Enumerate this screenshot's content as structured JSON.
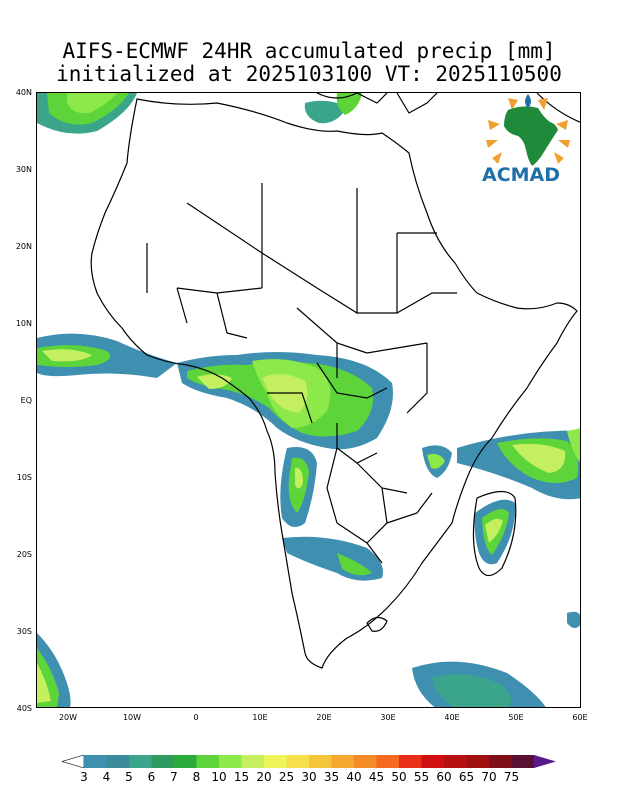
{
  "title": {
    "line1": "AIFS-ECMWF 24HR accumulated precip [mm]",
    "line2": "initialized at 2025103100 VT: 2025110500"
  },
  "logo": {
    "text": "ACMAD",
    "icon": "africa-map-logo-icon"
  },
  "axes": {
    "lat_labels": [
      "40N",
      "30N",
      "20N",
      "10N",
      "EQ",
      "10S",
      "20S",
      "30S",
      "40S"
    ],
    "lon_labels": [
      "20W",
      "10W",
      "0",
      "10E",
      "20E",
      "30E",
      "40E",
      "50E",
      "60E"
    ],
    "lat_range": [
      -40,
      40
    ],
    "lon_range": [
      -25,
      60
    ]
  },
  "colorbar": {
    "labels": [
      "3",
      "4",
      "5",
      "6",
      "7",
      "8",
      "10",
      "15",
      "20",
      "25",
      "30",
      "35",
      "40",
      "45",
      "50",
      "55",
      "60",
      "65",
      "70",
      "75"
    ],
    "colors": [
      "#3e8fb0",
      "#3d8a9a",
      "#3aa58a",
      "#2f9a5e",
      "#2aaa3a",
      "#5cd43a",
      "#8de84a",
      "#c4f060",
      "#eef55a",
      "#f5e04a",
      "#f5c43a",
      "#f5a830",
      "#f58a28",
      "#f56a20",
      "#e83018",
      "#d01010",
      "#b81010",
      "#a01010",
      "#801018",
      "#5a1030",
      "#5a1a8a"
    ]
  }
}
